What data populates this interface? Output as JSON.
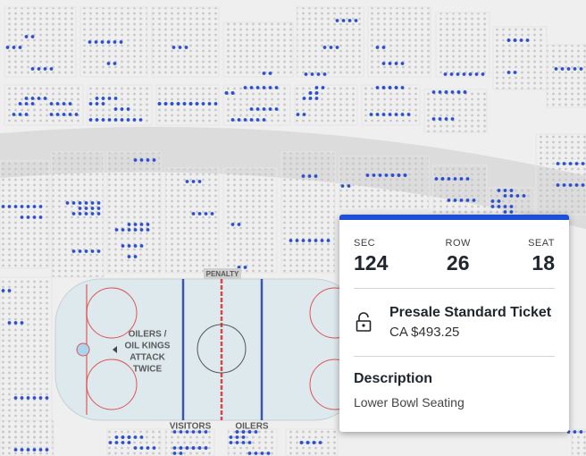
{
  "map": {
    "labels": {
      "penalty": "PENALTY",
      "rink_note": [
        "OILERS /",
        "OIL KINGS",
        "ATTACK",
        "TWICE"
      ],
      "visitors": "VISITORS",
      "home": "OILERS"
    }
  },
  "ticket": {
    "section": {
      "label": "SEC",
      "value": "124"
    },
    "row": {
      "label": "ROW",
      "value": "26"
    },
    "seat": {
      "label": "SEAT",
      "value": "18"
    },
    "name": "Presale Standard Ticket",
    "price": "CA $493.25",
    "description": {
      "title": "Description",
      "text": "Lower Bowl Seating"
    }
  }
}
